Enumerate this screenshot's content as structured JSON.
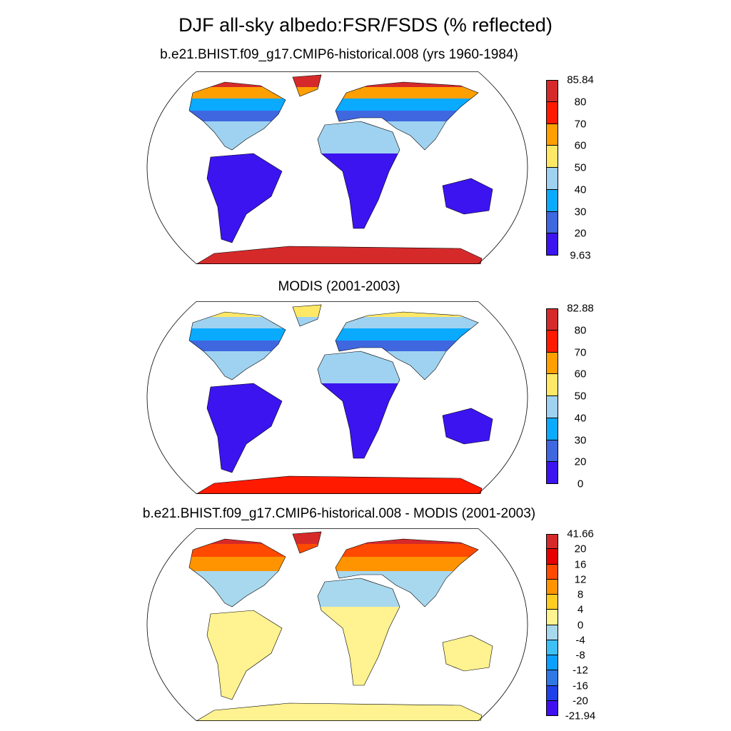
{
  "title": "DJF all-sky albedo:FSR/FSDS (% reflected)",
  "panels": [
    {
      "title": "b.e21.BHIST.f09_g17.CMIP6-historical.008 (yrs 1960-1984)",
      "colorbar": {
        "labels": [
          "85.84",
          "80",
          "70",
          "60",
          "50",
          "40",
          "30",
          "20",
          "9.63"
        ],
        "colors": [
          "#d62a2a",
          "#ff1a00",
          "#ff9f00",
          "#ffe866",
          "#9fd2f0",
          "#0aaaff",
          "#3f67e0",
          "#3c14f0"
        ]
      }
    },
    {
      "title": "MODIS (2001-2003)",
      "colorbar": {
        "labels": [
          "82.88",
          "80",
          "70",
          "60",
          "50",
          "40",
          "30",
          "20",
          "0"
        ],
        "colors": [
          "#d62a2a",
          "#ff1a00",
          "#ff9f00",
          "#ffe866",
          "#9fd2f0",
          "#0aaaff",
          "#3f67e0",
          "#3c14f0"
        ]
      }
    },
    {
      "title": "b.e21.BHIST.f09_g17.CMIP6-historical.008 - MODIS (2001-2003)",
      "colorbar": {
        "labels": [
          "41.66",
          "20",
          "16",
          "12",
          "8",
          "4",
          "0",
          "-4",
          "-8",
          "-12",
          "-16",
          "-20",
          "-21.94"
        ],
        "colors": [
          "#d62a2a",
          "#e60000",
          "#ff4a00",
          "#ff9400",
          "#ffcc22",
          "#fff290",
          "#a8d8ee",
          "#3cc0f5",
          "#0aa0ff",
          "#2f78e6",
          "#2040e8",
          "#4010f0"
        ]
      }
    }
  ]
}
